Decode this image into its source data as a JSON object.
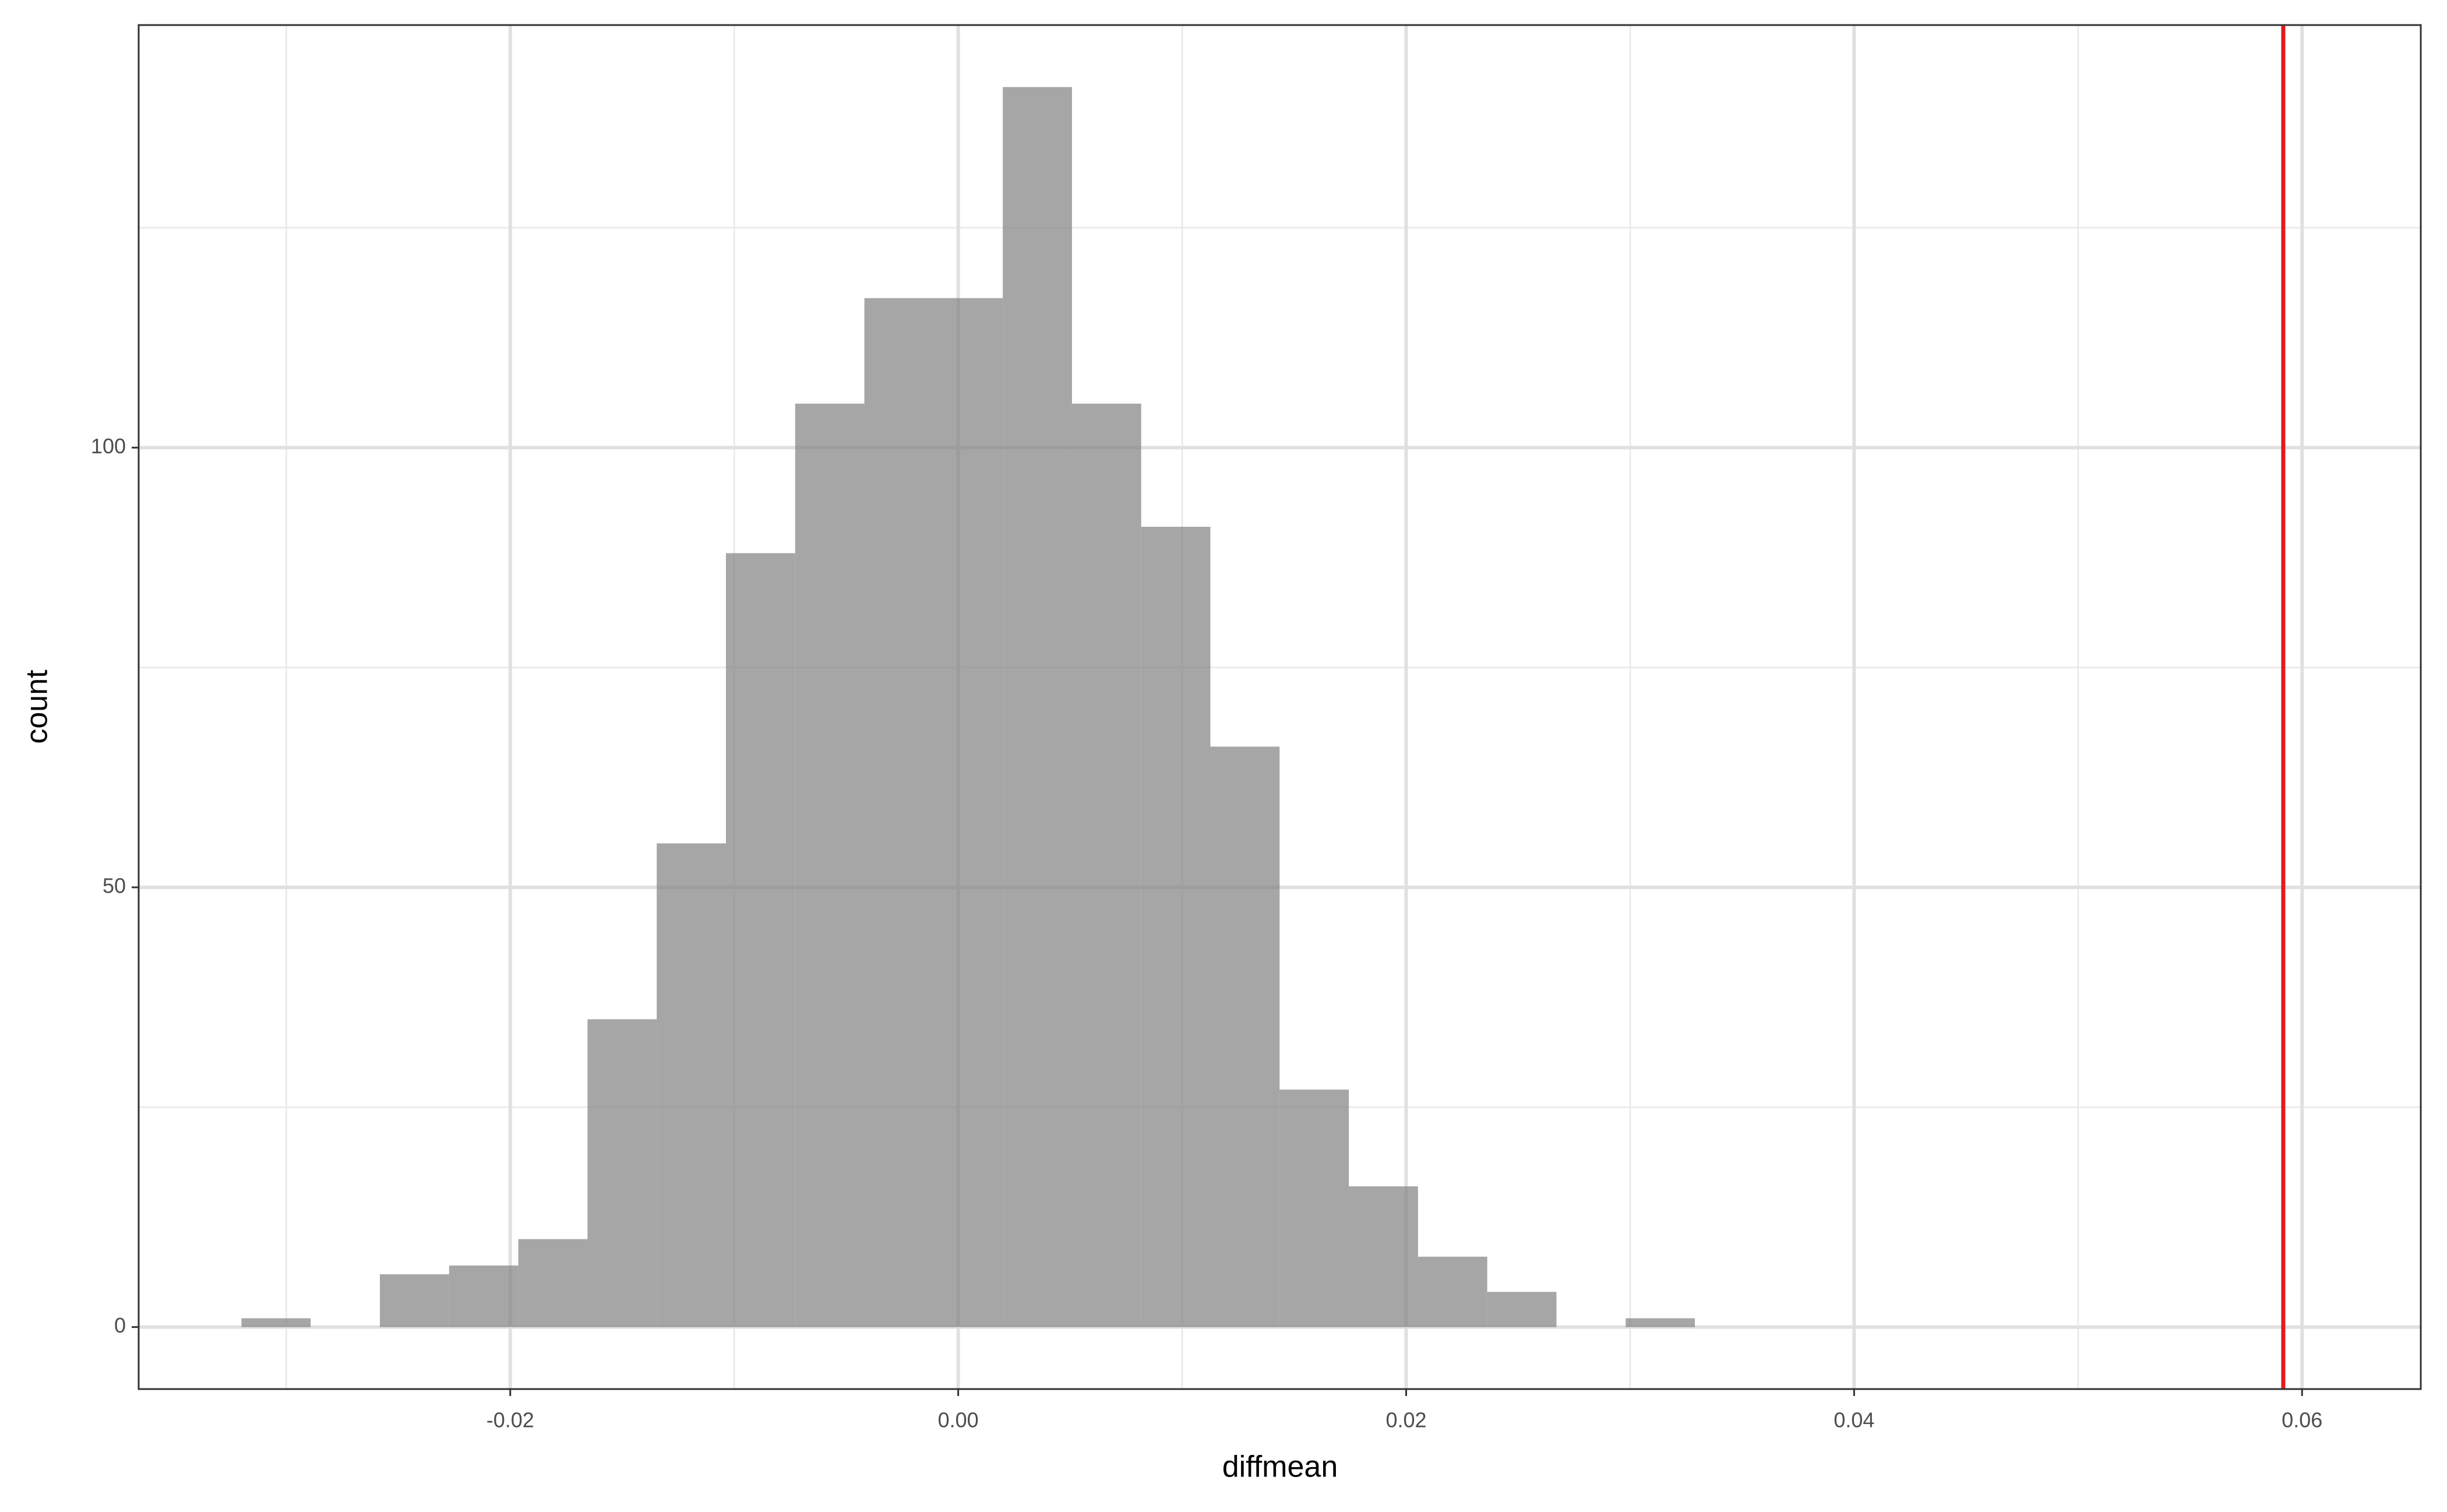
{
  "chart_data": {
    "type": "histogram",
    "x_label": "diffmean",
    "y_label": "count",
    "bins": [
      -0.032,
      -0.02891,
      -0.02582,
      -0.02273,
      -0.01964,
      -0.01655,
      -0.01346,
      -0.01037,
      -0.00728,
      -0.00419,
      -0.0011,
      0.00199,
      0.00508,
      0.00817,
      0.01126,
      0.01435,
      0.01744,
      0.02053,
      0.02362,
      0.02671,
      0.0298,
      0.03289
    ],
    "counts": [
      1,
      0,
      6,
      7,
      10,
      35,
      55,
      88,
      105,
      117,
      117,
      141,
      105,
      91,
      66,
      27,
      16,
      8,
      4,
      0,
      1
    ],
    "color": "#808080",
    "alpha": 0.7,
    "xlim": [
      -0.03659,
      0.0653
    ],
    "ylim": [
      -7.05,
      148.05
    ],
    "xticks": [
      {
        "value": -0.02,
        "label": "-0.02"
      },
      {
        "value": 0,
        "label": "0.00"
      },
      {
        "value": 0.02,
        "label": "0.02"
      },
      {
        "value": 0.04,
        "label": "0.04"
      },
      {
        "value": 0.06,
        "label": "0.06"
      }
    ],
    "yticks": [
      0,
      50,
      100
    ],
    "minor_xticks": [
      -0.03,
      -0.01,
      0.01,
      0.03,
      0.05
    ],
    "minor_yticks": [
      25,
      75,
      125
    ],
    "grid": true,
    "vline": {
      "value": 0.05916,
      "color": "#e31a1c"
    }
  }
}
